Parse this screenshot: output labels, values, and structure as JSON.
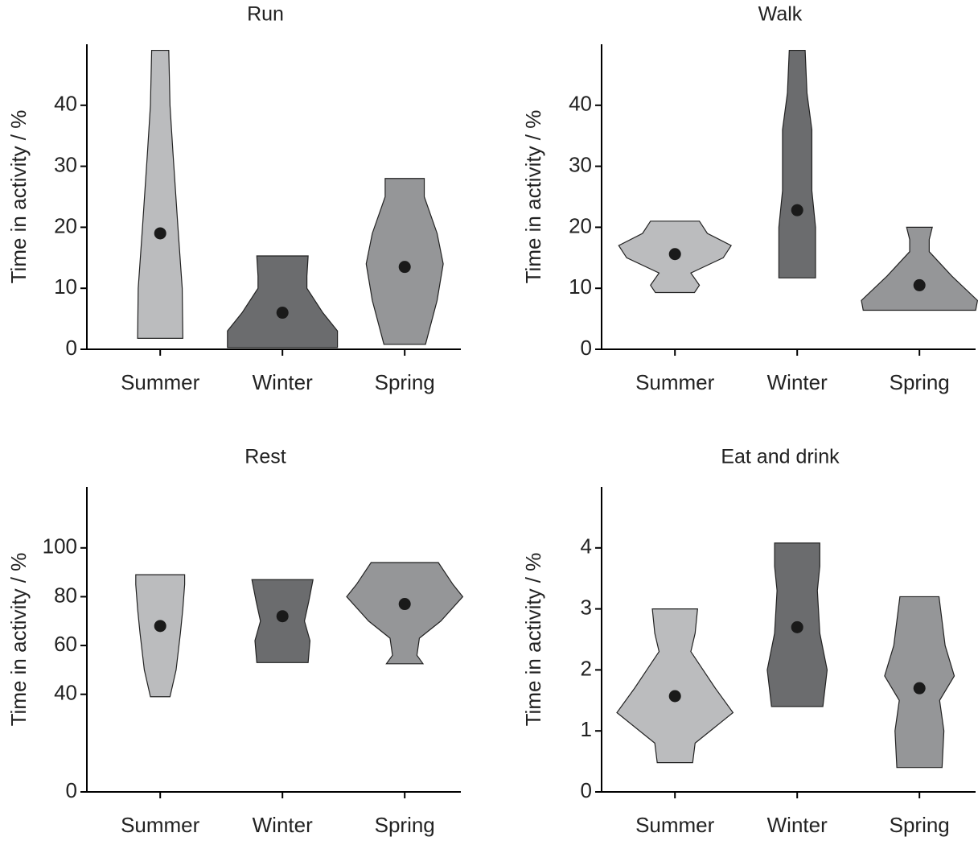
{
  "chart_data": [
    {
      "type": "violin",
      "title": "Run",
      "ylabel": "Time in activity / %",
      "categories": [
        "Summer",
        "Winter",
        "Spring"
      ],
      "colors": [
        "#bbbcbe",
        "#6b6c6e",
        "#959698"
      ],
      "ylim": [
        0,
        50
      ],
      "yticks": [
        0,
        10,
        20,
        30,
        40
      ],
      "violins": [
        {
          "mean": 19,
          "y": [
            1.8,
            10,
            20,
            32,
            40,
            49
          ],
          "density": [
            0.37,
            0.36,
            0.29,
            0.21,
            0.16,
            0.14
          ]
        },
        {
          "mean": 6,
          "y": [
            0.3,
            3,
            6,
            10,
            12,
            15.3
          ],
          "density": [
            0.9,
            0.9,
            0.66,
            0.4,
            0.4,
            0.42
          ]
        },
        {
          "mean": 13.5,
          "y": [
            0.8,
            8,
            14,
            19,
            25,
            28
          ],
          "density": [
            0.34,
            0.53,
            0.63,
            0.53,
            0.32,
            0.32
          ]
        }
      ]
    },
    {
      "type": "violin",
      "title": "Walk",
      "ylabel": "Time in activity / %",
      "categories": [
        "Summer",
        "Winter",
        "Spring"
      ],
      "colors": [
        "#bbbcbe",
        "#6b6c6e",
        "#959698"
      ],
      "ylim": [
        0,
        50
      ],
      "yticks": [
        0,
        10,
        20,
        30,
        40
      ],
      "violins": [
        {
          "mean": 15.6,
          "y": [
            9.3,
            10.5,
            12.5,
            15,
            17,
            19,
            21
          ],
          "density": [
            0.32,
            0.4,
            0.26,
            0.79,
            0.92,
            0.53,
            0.4
          ]
        },
        {
          "mean": 22.8,
          "y": [
            11.7,
            20,
            26,
            36,
            42,
            49
          ],
          "density": [
            0.3,
            0.3,
            0.24,
            0.24,
            0.16,
            0.13
          ]
        },
        {
          "mean": 10.5,
          "y": [
            6.4,
            8,
            12,
            16,
            18,
            20
          ],
          "density": [
            0.92,
            0.95,
            0.53,
            0.16,
            0.16,
            0.21
          ]
        }
      ]
    },
    {
      "type": "violin",
      "title": "Rest",
      "ylabel": "Time in activity / %",
      "categories": [
        "Summer",
        "Winter",
        "Spring"
      ],
      "colors": [
        "#bbbcbe",
        "#6b6c6e",
        "#959698"
      ],
      "ylim": [
        0,
        125
      ],
      "yticks": [
        0,
        40,
        60,
        80,
        100
      ],
      "violins": [
        {
          "mean": 68,
          "y": [
            39,
            50,
            65,
            75,
            85,
            89
          ],
          "density": [
            0.16,
            0.26,
            0.33,
            0.37,
            0.4,
            0.4
          ]
        },
        {
          "mean": 72,
          "y": [
            53,
            62,
            70,
            78,
            87
          ],
          "density": [
            0.42,
            0.45,
            0.36,
            0.43,
            0.5
          ]
        },
        {
          "mean": 77,
          "y": [
            52.5,
            56,
            63,
            70,
            80,
            85,
            94
          ],
          "density": [
            0.3,
            0.2,
            0.24,
            0.59,
            0.95,
            0.79,
            0.55
          ]
        }
      ]
    },
    {
      "type": "violin",
      "title": "Eat and drink",
      "ylabel": "Time in activity / %",
      "categories": [
        "Summer",
        "Winter",
        "Spring"
      ],
      "colors": [
        "#bbbcbe",
        "#6b6c6e",
        "#959698"
      ],
      "ylim": [
        0,
        5
      ],
      "yticks": [
        0,
        1,
        2,
        3,
        4
      ],
      "violins": [
        {
          "mean": 1.57,
          "y": [
            0.48,
            0.8,
            1.3,
            1.7,
            2.3,
            2.6,
            3
          ],
          "density": [
            0.29,
            0.33,
            0.95,
            0.66,
            0.26,
            0.33,
            0.37
          ]
        },
        {
          "mean": 2.7,
          "y": [
            1.4,
            2,
            2.6,
            3.3,
            3.7,
            4.08
          ],
          "density": [
            0.42,
            0.49,
            0.37,
            0.33,
            0.37,
            0.37
          ]
        },
        {
          "mean": 1.7,
          "y": [
            0.4,
            1,
            1.5,
            1.9,
            2.4,
            3.2
          ],
          "density": [
            0.37,
            0.4,
            0.33,
            0.57,
            0.42,
            0.32
          ]
        }
      ]
    }
  ]
}
